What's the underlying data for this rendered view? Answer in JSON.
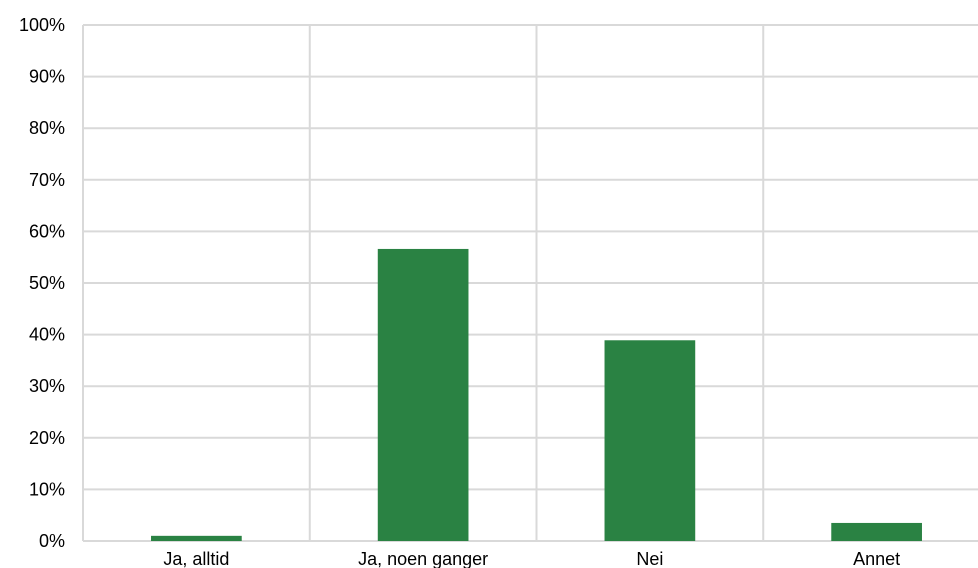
{
  "chart_data": {
    "type": "bar",
    "categories": [
      "Ja, alltid",
      "Ja, noen ganger",
      "Nei",
      "Annet"
    ],
    "values": [
      1,
      56.6,
      38.9,
      3.5
    ],
    "ylim": [
      0,
      100
    ],
    "yticks": [
      "0%",
      "10%",
      "20%",
      "30%",
      "40%",
      "50%",
      "60%",
      "70%",
      "80%",
      "90%",
      "100%"
    ],
    "title": "",
    "xlabel": "",
    "ylabel": "",
    "grid": true,
    "bar_color": "#2a8243",
    "grid_color": "#d9d9d9"
  }
}
